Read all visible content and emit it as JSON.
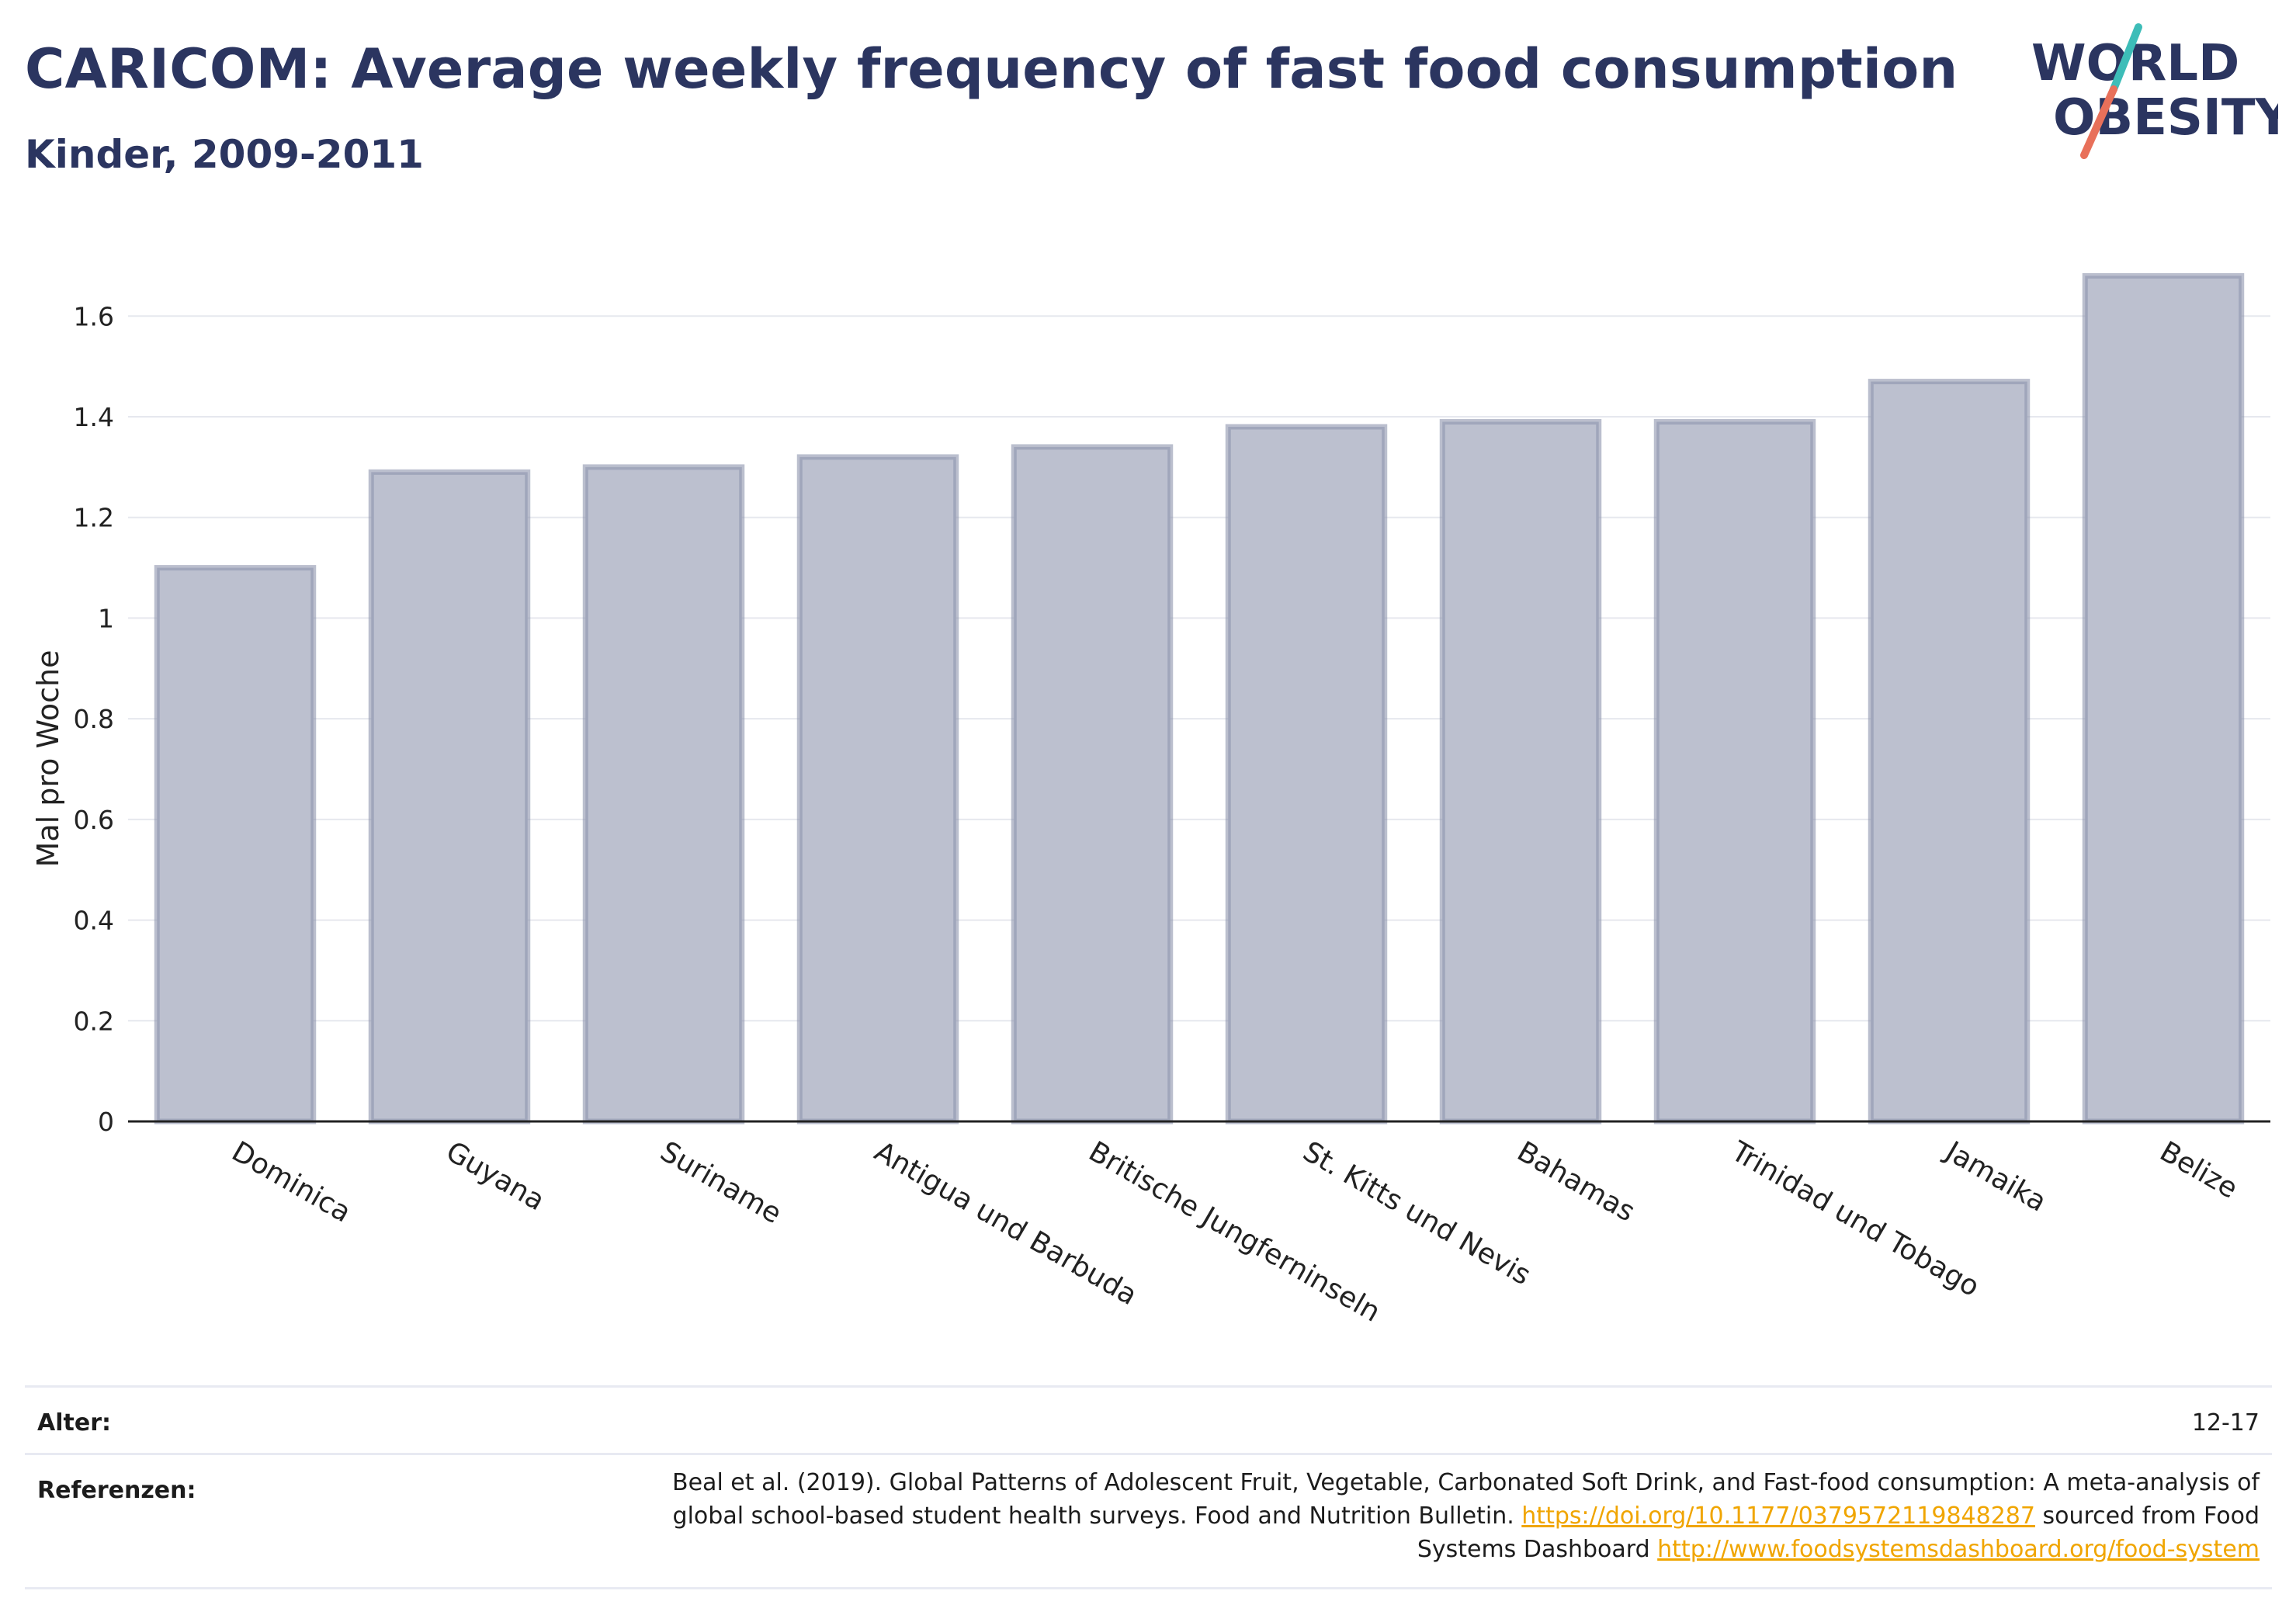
{
  "header": {
    "title": "CARICOM: Average weekly frequency of fast food consumption",
    "subtitle": "Kinder, 2009-2011"
  },
  "logo": {
    "line1": "WORLD",
    "line2": "OBESITY",
    "colors": {
      "text": "#2b3560",
      "slash_teal": "#3dbdb8",
      "slash_coral": "#e8705a"
    }
  },
  "chart_data": {
    "type": "bar",
    "categories": [
      "Dominica",
      "Guyana",
      "Suriname",
      "Antigua und Barbuda",
      "Britische Jungferninseln",
      "St. Kitts und Nevis",
      "Bahamas",
      "Trinidad und Tobago",
      "Jamaika",
      "Belize"
    ],
    "values": [
      1.1,
      1.29,
      1.3,
      1.32,
      1.34,
      1.38,
      1.39,
      1.39,
      1.47,
      1.68
    ],
    "xlabel": "",
    "ylabel": "Mal pro Woche",
    "ylim": [
      0,
      1.75
    ],
    "yticks": [
      0,
      0.2,
      0.4,
      0.6,
      0.8,
      1,
      1.2,
      1.4,
      1.6
    ],
    "ytick_labels": [
      "0",
      "0.2",
      "0.4",
      "0.6",
      "0.8",
      "1",
      "1.2",
      "1.4",
      "1.6"
    ],
    "grid": true,
    "colors": {
      "bar_fill": "#bcc0cf",
      "bar_stroke": "#8e94ad",
      "grid": "#e6e8ee",
      "axis": "#222222"
    }
  },
  "footer": {
    "age": {
      "label": "Alter:",
      "value": "12-17"
    },
    "references": {
      "label": "Referenzen:",
      "text1": "Beal et al. (2019). Global Patterns of Adolescent Fruit, Vegetable, Carbonated Soft Drink, and Fast-food consumption: A meta-analysis of global school-based student health surveys. Food and Nutrition Bulletin. ",
      "link1": "https://doi.org/10.1177/0379572119848287",
      "text2": " sourced from Food Systems Dashboard ",
      "link2": "http://www.foodsystemsdashboard.org/food-system",
      "link_color": "#f0a500"
    }
  }
}
